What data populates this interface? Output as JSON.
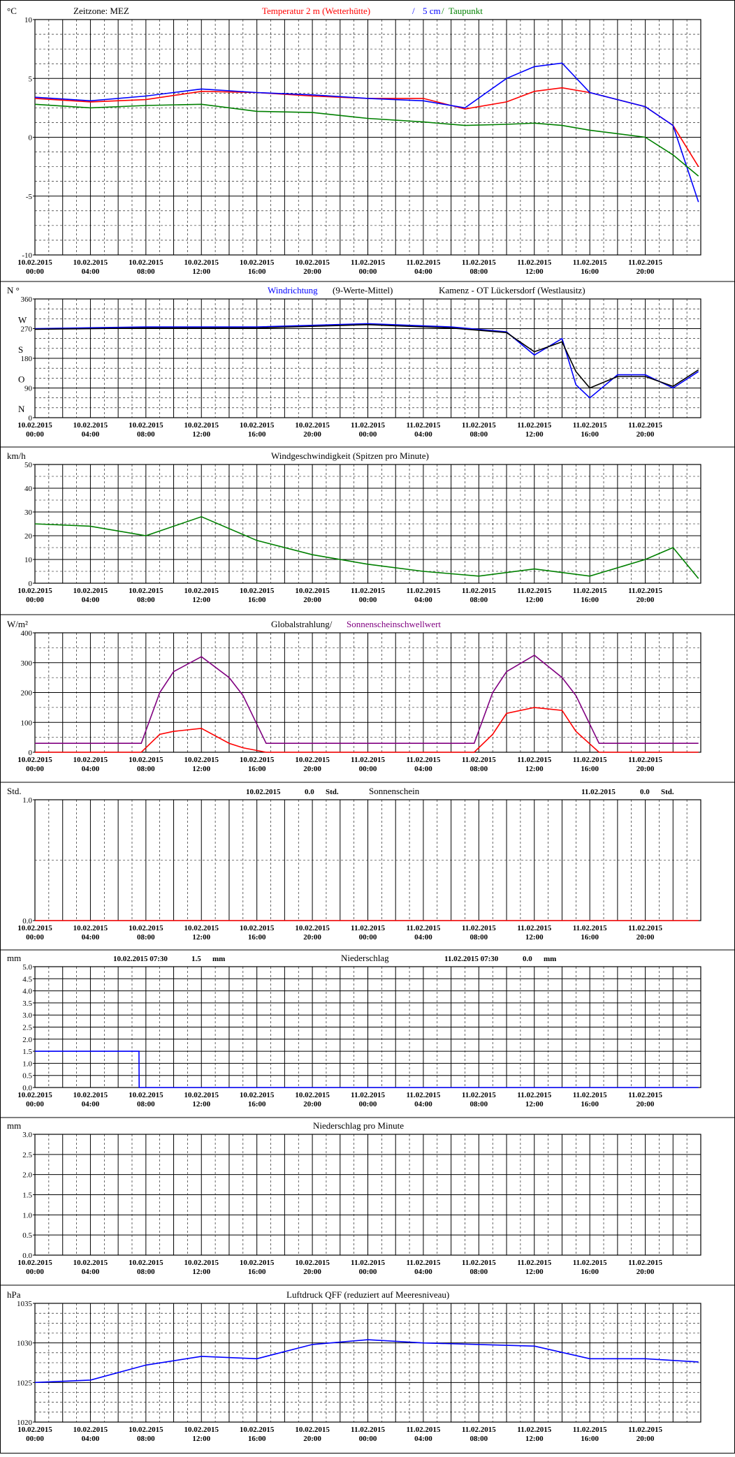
{
  "x_ticks": [
    [
      "10.02.2015",
      "00:00"
    ],
    [
      "10.02.2015",
      "04:00"
    ],
    [
      "10.02.2015",
      "08:00"
    ],
    [
      "10.02.2015",
      "12:00"
    ],
    [
      "10.02.2015",
      "16:00"
    ],
    [
      "10.02.2015",
      "20:00"
    ],
    [
      "11.02.2015",
      "00:00"
    ],
    [
      "11.02.2015",
      "04:00"
    ],
    [
      "11.02.2015",
      "08:00"
    ],
    [
      "11.02.2015",
      "12:00"
    ],
    [
      "11.02.2015",
      "16:00"
    ],
    [
      "11.02.2015",
      "20:00"
    ]
  ],
  "chart_data": [
    {
      "type": "line",
      "ylim": [
        -10,
        10
      ],
      "unit": "°C",
      "title_parts": [
        {
          "text": "Zeitzone: MEZ",
          "color": "#000000"
        },
        {
          "text": "Temperatur 2 m (Wetterhütte)",
          "color": "#ff0000"
        },
        {
          "text": "/",
          "color": "#0000ff"
        },
        {
          "text": "5 cm",
          "color": "#0000ff"
        },
        {
          "text": "/",
          "color": "#008000"
        },
        {
          "text": "Taupunkt",
          "color": "#008000"
        }
      ],
      "y_ticks": [
        "10",
        "5",
        "0",
        "-5",
        "-10"
      ],
      "x": [
        "10.02. 00:00",
        "10.02. 04:00",
        "10.02. 08:00",
        "10.02. 12:00",
        "10.02. 16:00",
        "10.02. 20:00",
        "11.02. 00:00",
        "11.02. 04:00",
        "11.02. 07:00",
        "11.02. 10:00",
        "11.02. 12:00",
        "11.02. 14:00",
        "11.02. 16:00",
        "11.02. 20:00",
        "11.02. 22:00",
        "11.02. 23:50"
      ],
      "series": [
        {
          "name": "Temperatur 2 m (Wetterhütte)",
          "color": "#ff0000",
          "values": [
            3.3,
            3.0,
            3.2,
            3.9,
            3.8,
            3.5,
            3.3,
            3.3,
            2.4,
            3.0,
            3.9,
            4.2,
            3.8,
            2.6,
            1.0,
            -2.5
          ]
        },
        {
          "name": "5 cm",
          "color": "#0000ff",
          "values": [
            3.4,
            3.1,
            3.5,
            4.1,
            3.8,
            3.6,
            3.3,
            3.1,
            2.5,
            5.0,
            6.0,
            6.3,
            3.8,
            2.6,
            1.0,
            -5.5
          ]
        },
        {
          "name": "Taupunkt",
          "color": "#008000",
          "values": [
            2.8,
            2.5,
            2.7,
            2.8,
            2.2,
            2.1,
            1.6,
            1.3,
            1.0,
            1.1,
            1.2,
            1.0,
            0.6,
            0.0,
            -1.5,
            -3.3
          ]
        }
      ]
    },
    {
      "type": "line",
      "ylim": [
        0,
        360
      ],
      "unit": "N °",
      "title_parts": [
        {
          "text": "Windrichtung",
          "color": "#0000ff"
        },
        {
          "text": "(9-Werte-Mittel)",
          "color": "#000000"
        },
        {
          "text": "Kamenz - OT Lückersdorf (Westlausitz)",
          "color": "#000000"
        }
      ],
      "y_ticks": [
        "360",
        "270",
        "180",
        "90",
        "0"
      ],
      "y_letters": [
        "W",
        "S",
        "O",
        "N"
      ],
      "x": [
        "10.02. 00:00",
        "10.02. 08:00",
        "10.02. 16:00",
        "11.02. 00:00",
        "11.02. 06:00",
        "11.02. 10:00",
        "11.02. 12:00",
        "11.02. 14:00",
        "11.02. 15:00",
        "11.02. 16:00",
        "11.02. 18:00",
        "11.02. 20:00",
        "11.02. 22:00",
        "11.02. 23:50"
      ],
      "series": [
        {
          "name": "Windrichtung",
          "color": "#0000ff",
          "values": [
            270,
            275,
            275,
            285,
            275,
            260,
            190,
            240,
            100,
            60,
            130,
            130,
            90,
            140
          ]
        },
        {
          "name": "(9-Werte-Mittel)",
          "color": "#000000",
          "values": [
            268,
            272,
            272,
            282,
            272,
            258,
            200,
            230,
            140,
            90,
            125,
            125,
            95,
            145
          ]
        }
      ]
    },
    {
      "type": "line",
      "ylim": [
        0,
        50
      ],
      "unit": "km/h",
      "title_parts": [
        {
          "text": "Windgeschwindigkeit (Spitzen pro Minute)",
          "color": "#000000"
        }
      ],
      "y_ticks": [
        "50",
        "40",
        "30",
        "20",
        "10",
        "0"
      ],
      "x": [
        "10.02. 00:00",
        "10.02. 04:00",
        "10.02. 08:00",
        "10.02. 12:00",
        "10.02. 16:00",
        "10.02. 20:00",
        "11.02. 00:00",
        "11.02. 04:00",
        "11.02. 08:00",
        "11.02. 12:00",
        "11.02. 16:00",
        "11.02. 20:00",
        "11.02. 22:00",
        "11.02. 23:50"
      ],
      "series": [
        {
          "name": "Windgeschwindigkeit",
          "color": "#008000",
          "values": [
            25,
            24,
            20,
            28,
            18,
            12,
            8,
            5,
            3,
            6,
            3,
            10,
            15,
            2
          ]
        }
      ]
    },
    {
      "type": "line",
      "ylim": [
        0,
        400
      ],
      "unit": "W/m²",
      "title_parts": [
        {
          "text": "Globalstrahlung/",
          "color": "#000000"
        },
        {
          "text": "Sonnenscheinschwellwert",
          "color": "#800080"
        }
      ],
      "y_ticks": [
        "400",
        "300",
        "200",
        "100",
        "0"
      ],
      "x": [
        "10.02. 00:00",
        "10.02. 07:40",
        "10.02. 09:00",
        "10.02. 10:00",
        "10.02. 12:00",
        "10.02. 14:00",
        "10.02. 15:00",
        "10.02. 16:40",
        "11.02. 07:40",
        "11.02. 09:00",
        "11.02. 10:00",
        "11.02. 12:00",
        "11.02. 14:00",
        "11.02. 15:00",
        "11.02. 16:40",
        "11.02. 23:50"
      ],
      "series": [
        {
          "name": "Globalstrahlung",
          "color": "#ff0000",
          "values": [
            0,
            0,
            60,
            70,
            80,
            30,
            15,
            0,
            0,
            60,
            130,
            150,
            140,
            70,
            0,
            0
          ]
        },
        {
          "name": "Sonnenscheinschwellwert",
          "color": "#800080",
          "values": [
            30,
            30,
            200,
            270,
            320,
            250,
            190,
            30,
            30,
            200,
            270,
            325,
            250,
            190,
            30,
            30
          ]
        }
      ]
    },
    {
      "type": "line",
      "ylim": [
        0,
        1
      ],
      "unit": "Std.",
      "title_parts": [
        {
          "text": "Sonnenschein",
          "color": "#000000"
        }
      ],
      "y_ticks": [
        "1.0",
        "0.0"
      ],
      "notes": [
        {
          "date": "10.02.2015",
          "value": "0.0",
          "unit": "Std."
        },
        {
          "date": "11.02.2015",
          "value": "0.0",
          "unit": "Std."
        }
      ],
      "x": [
        "10.02. 00:00",
        "11.02. 23:50"
      ],
      "series": [
        {
          "name": "Sonnenschein",
          "color": "#ff0000",
          "values": [
            0,
            0
          ]
        }
      ]
    },
    {
      "type": "line",
      "ylim": [
        0,
        5
      ],
      "unit": "mm",
      "title_parts": [
        {
          "text": "Niederschlag",
          "color": "#000000"
        }
      ],
      "y_ticks": [
        "5.0",
        "4.5",
        "4.0",
        "3.5",
        "3.0",
        "2.5",
        "2.0",
        "1.5",
        "1.0",
        "0.5",
        "0.0"
      ],
      "notes": [
        {
          "date": "10.02.2015 07:30",
          "value": "1.5",
          "unit": "mm"
        },
        {
          "date": "11.02.2015 07:30",
          "value": "0.0",
          "unit": "mm"
        }
      ],
      "x": [
        "10.02. 00:00",
        "10.02. 07:30",
        "10.02. 07:31",
        "11.02. 23:50"
      ],
      "series": [
        {
          "name": "Niederschlag",
          "color": "#0000ff",
          "values": [
            1.5,
            1.5,
            0,
            0
          ]
        }
      ]
    },
    {
      "type": "line",
      "ylim": [
        0,
        3
      ],
      "unit": "mm",
      "title_parts": [
        {
          "text": "Niederschlag pro Minute",
          "color": "#000000"
        }
      ],
      "y_ticks": [
        "3.0",
        "2.5",
        "2.0",
        "1.5",
        "1.0",
        "0.5",
        "0.0"
      ],
      "x": [],
      "series": []
    },
    {
      "type": "line",
      "ylim": [
        1020,
        1035
      ],
      "unit": "hPa",
      "title_parts": [
        {
          "text": "Luftdruck QFF (reduziert auf Meeresniveau)",
          "color": "#000000"
        }
      ],
      "y_ticks": [
        "1035",
        "1030",
        "1025",
        "1020"
      ],
      "x": [
        "10.02. 00:00",
        "10.02. 04:00",
        "10.02. 08:00",
        "10.02. 12:00",
        "10.02. 16:00",
        "10.02. 20:00",
        "11.02. 00:00",
        "11.02. 04:00",
        "11.02. 08:00",
        "11.02. 12:00",
        "11.02. 16:00",
        "11.02. 20:00",
        "11.02. 23:50"
      ],
      "series": [
        {
          "name": "Luftdruck QFF",
          "color": "#0000ff",
          "values": [
            1025.0,
            1025.3,
            1027.2,
            1028.3,
            1028.0,
            1029.8,
            1030.4,
            1030.0,
            1029.8,
            1029.6,
            1028.0,
            1028.0,
            1027.6
          ]
        }
      ]
    }
  ]
}
